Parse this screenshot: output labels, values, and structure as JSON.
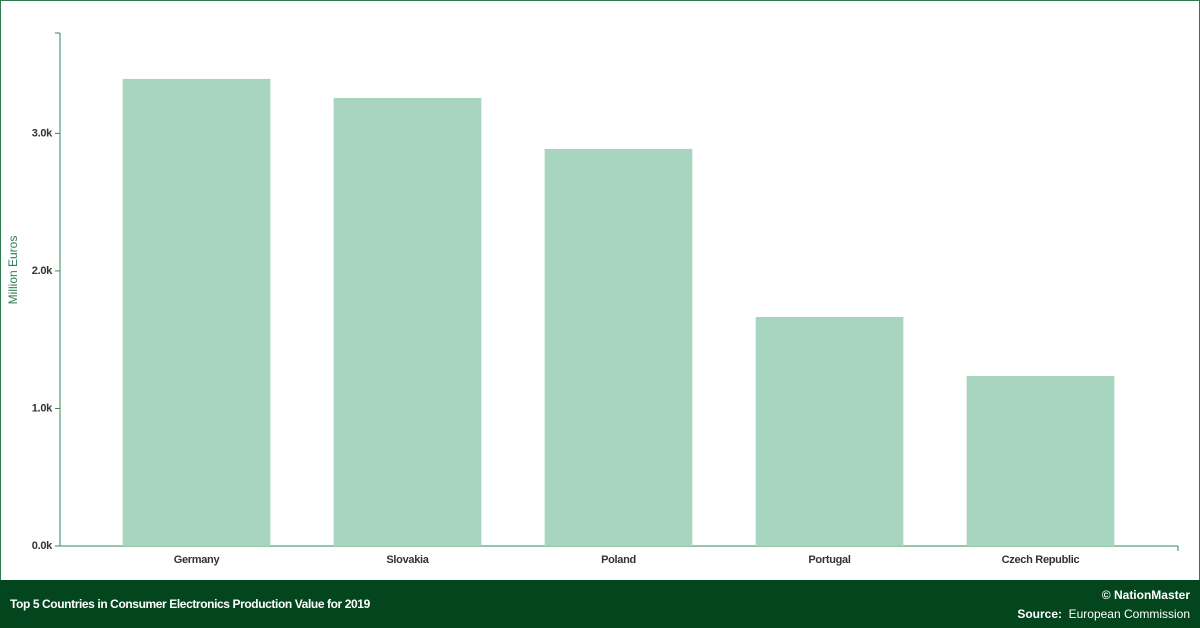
{
  "chart_data": {
    "type": "bar",
    "title": "Top 5 Countries in Consumer Electronics Production Value for 2019",
    "y_label": "Million Euros",
    "categories": [
      "Germany",
      "Slovakia",
      "Poland",
      "Portugal",
      "Czech Republic"
    ],
    "values": [
      3396,
      3258,
      2887,
      1665,
      1236
    ],
    "color": "#a8d5c0",
    "ylim": [
      0,
      3730
    ],
    "yticks": [
      {
        "value": 0,
        "label": "0.0k"
      },
      {
        "value": 1000,
        "label": "1.0k"
      },
      {
        "value": 2000,
        "label": "2.0k"
      },
      {
        "value": 3000,
        "label": "3.0k"
      }
    ],
    "credit": "© NationMaster",
    "source_label": "Source:",
    "source": "European Commission"
  }
}
